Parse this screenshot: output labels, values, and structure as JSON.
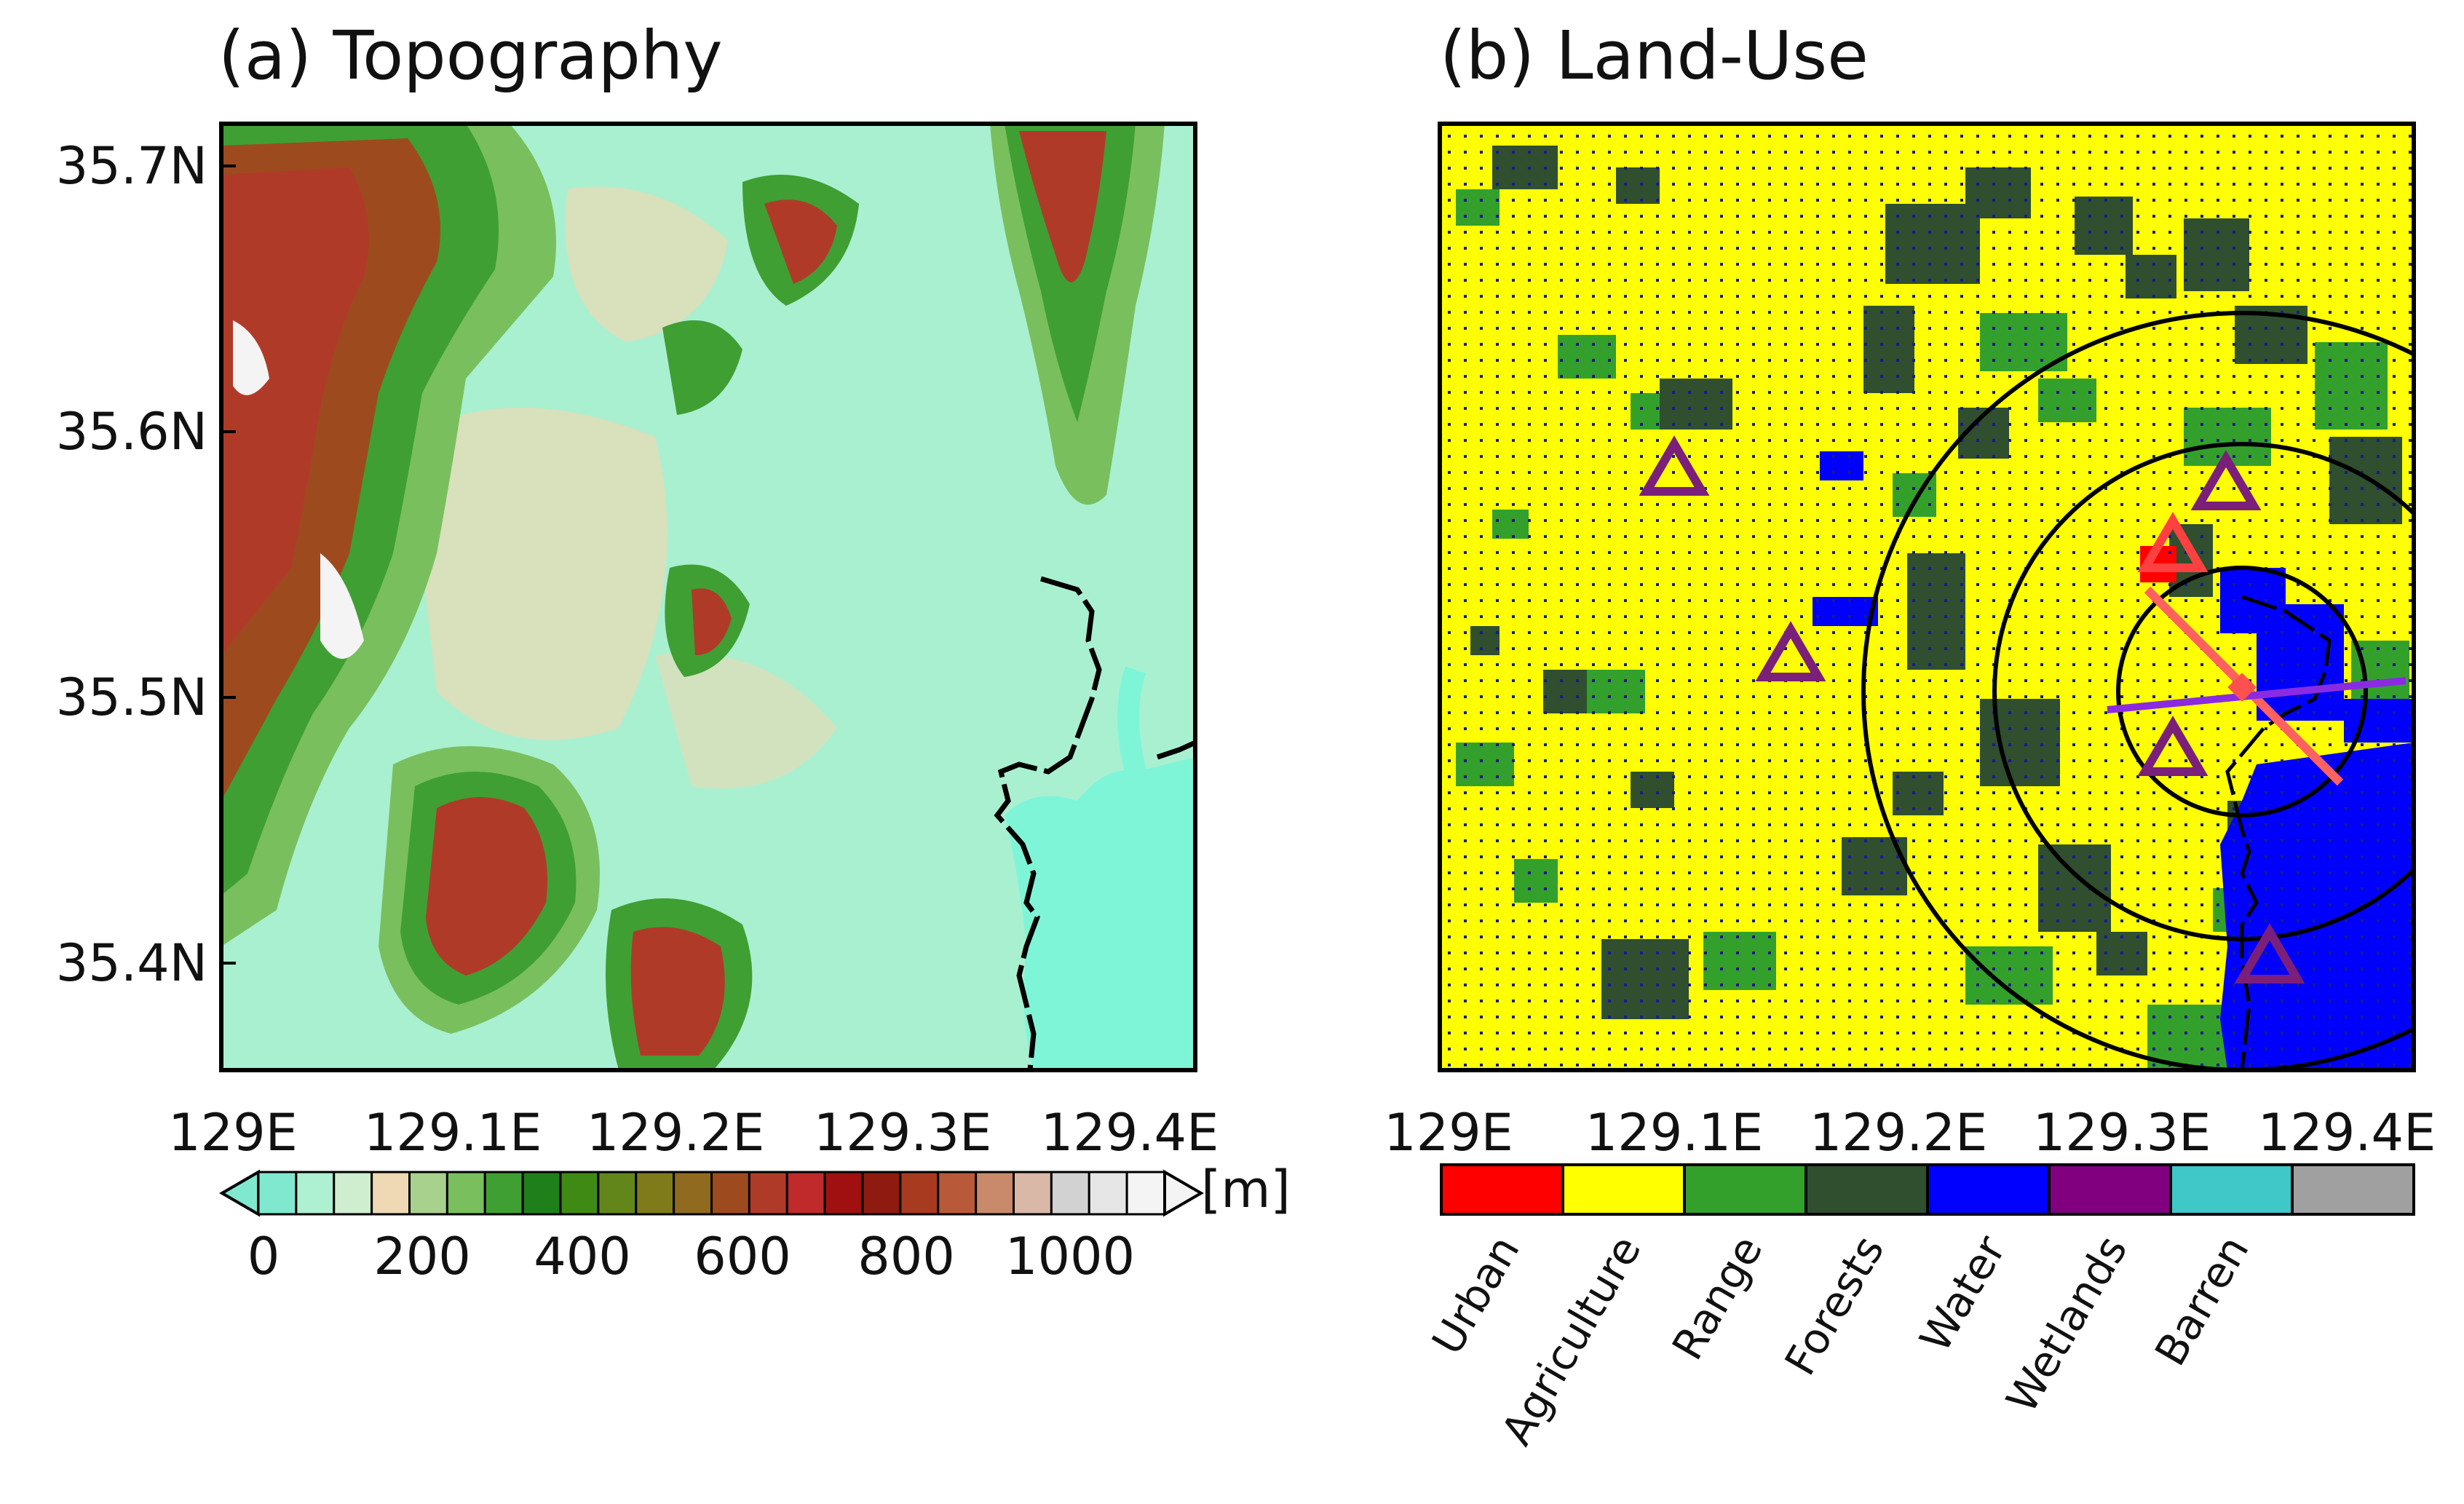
{
  "panel_a": {
    "title": "(a) Topography",
    "y_ticks": [
      "35.7N",
      "35.6N",
      "35.5N",
      "35.4N"
    ],
    "x_ticks": [
      "129E",
      "129.1E",
      "129.2E",
      "129.3E",
      "129.4E"
    ],
    "colorbar": {
      "unit": "[m]",
      "tick_labels": [
        "0",
        "200",
        "400",
        "600",
        "800",
        "1000"
      ],
      "colors": [
        "#7fe8cf",
        "#aef0d2",
        "#cfeecf",
        "#eed9b4",
        "#a8d18e",
        "#79bf5e",
        "#3f9f33",
        "#1f7f1a",
        "#3f8a14",
        "#62861a",
        "#7f7a1a",
        "#8f6a1f",
        "#9e4a1f",
        "#b03a28",
        "#c02a2a",
        "#a01010",
        "#8f1a10",
        "#a83a1f",
        "#b85a3a",
        "#c88a6a",
        "#d9b8a8",
        "#d2d2d2",
        "#e6e6e6",
        "#f4f4f4"
      ]
    }
  },
  "panel_b": {
    "title": "(b) Land-Use",
    "x_ticks": [
      "129E",
      "129.1E",
      "129.2E",
      "129.3E",
      "129.4E"
    ],
    "legend": [
      {
        "label": "Urban",
        "color": "#ff0000"
      },
      {
        "label": "Agriculture",
        "color": "#ffff00"
      },
      {
        "label": "Range",
        "color": "#33a02c"
      },
      {
        "label": "Forests",
        "color": "#2f4f2f"
      },
      {
        "label": "Water",
        "color": "#0000ff"
      },
      {
        "label": "Wetlands",
        "color": "#800080"
      },
      {
        "label": "Barren",
        "color": "#40c8c8"
      },
      {
        "label": "",
        "color": "#a0a0a0"
      }
    ],
    "site_markers": [
      {
        "lon": 129.1,
        "lat": 35.585
      },
      {
        "lon": 129.15,
        "lat": 35.515
      },
      {
        "lon": 129.345,
        "lat": 35.58
      },
      {
        "lon": 129.32,
        "lat": 35.48
      },
      {
        "lon": 129.365,
        "lat": 35.4
      }
    ],
    "urban_marker": {
      "lon": 129.323,
      "lat": 35.555
    }
  }
}
